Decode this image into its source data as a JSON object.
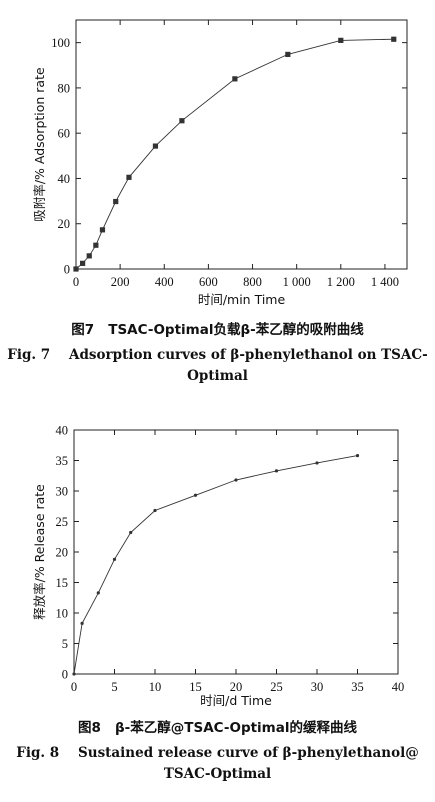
{
  "figures": [
    {
      "caption_cn_label": "图7",
      "caption_cn": "TSAC-Optimal负载β-苯乙醇的吸附曲线",
      "caption_en_label": "Fig. 7",
      "caption_en_line1": "Adsorption curves of β-phenylethanol on TSAC-",
      "caption_en_line2": "Optimal"
    },
    {
      "caption_cn_label": "图8",
      "caption_cn": "β-苯乙醇@TSAC-Optimal的缓释曲线",
      "caption_en_label": "Fig. 8",
      "caption_en_line1": "Sustained release curve of β-phenylethanol@",
      "caption_en_line2": "TSAC-Optimal"
    }
  ],
  "chart_data": [
    {
      "type": "line",
      "xlabel": "时间/min Time",
      "ylabel": "吸附率/% Adsorption rate",
      "xlim": [
        0,
        1500
      ],
      "ylim": [
        0,
        110
      ],
      "xticks": [
        0,
        200,
        400,
        600,
        800,
        1000,
        1200,
        1400
      ],
      "xtick_labels": [
        "0",
        "200",
        "400",
        "600",
        "800",
        "1 000",
        "1 200",
        "1 400"
      ],
      "yticks": [
        0,
        20,
        40,
        60,
        80,
        100
      ],
      "ytick_labels": [
        "0",
        "20",
        "40",
        "60",
        "80",
        "100"
      ],
      "marker": "square",
      "grid": false,
      "series": [
        {
          "x": [
            0,
            30,
            60,
            90,
            120,
            180,
            240,
            360,
            480,
            720,
            960,
            1200,
            1440
          ],
          "y": [
            0,
            2.5,
            5.8,
            10.5,
            17.3,
            29.8,
            40.5,
            54.3,
            65.5,
            84.0,
            94.8,
            101.0,
            101.5
          ]
        }
      ]
    },
    {
      "type": "line",
      "xlabel": "时间/d Time",
      "ylabel": "释放率/% Release rate",
      "xlim": [
        0,
        40
      ],
      "ylim": [
        0,
        40
      ],
      "xticks": [
        0,
        5,
        10,
        15,
        20,
        25,
        30,
        35,
        40
      ],
      "xtick_labels": [
        "0",
        "5",
        "10",
        "15",
        "20",
        "25",
        "30",
        "35",
        "40"
      ],
      "yticks": [
        0,
        5,
        10,
        15,
        20,
        25,
        30,
        35,
        40
      ],
      "ytick_labels": [
        "0",
        "5",
        "10",
        "15",
        "20",
        "25",
        "30",
        "35",
        "40"
      ],
      "marker": "dot",
      "grid": false,
      "series": [
        {
          "x": [
            0,
            1,
            3,
            5,
            7,
            10,
            15,
            20,
            25,
            30,
            35
          ],
          "y": [
            0,
            8.3,
            13.3,
            18.8,
            23.2,
            26.8,
            29.3,
            31.8,
            33.3,
            34.6,
            35.8
          ]
        }
      ]
    }
  ]
}
